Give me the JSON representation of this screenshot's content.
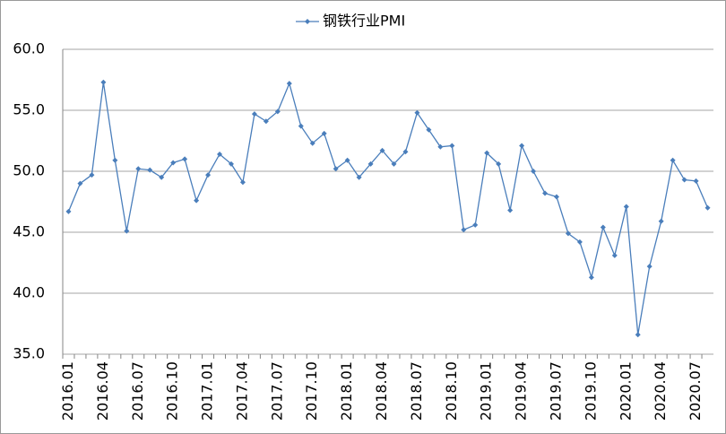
{
  "chart_data": {
    "type": "line",
    "categories": [
      "2016.01",
      null,
      null,
      "2016.04",
      null,
      null,
      "2016.07",
      null,
      null,
      "2016.10",
      null,
      null,
      "2017.01",
      null,
      null,
      "2017.04",
      null,
      null,
      "2017.07",
      null,
      null,
      "2017.10",
      null,
      null,
      "2018.01",
      null,
      null,
      "2018.04",
      null,
      null,
      "2018.07",
      null,
      null,
      "2018.10",
      null,
      null,
      "2019.01",
      null,
      null,
      "2019.04",
      null,
      null,
      "2019.07",
      null,
      null,
      "2019.10",
      null,
      null,
      "2020.01",
      null,
      null,
      "2020.04",
      null,
      null,
      "2020.07",
      null
    ],
    "series": [
      {
        "name": "钢铁行业PMI",
        "color": "#4a7ebb",
        "values": [
          46.7,
          49.0,
          49.7,
          57.3,
          50.9,
          45.1,
          50.2,
          50.1,
          49.5,
          50.7,
          51.0,
          47.6,
          49.7,
          51.4,
          50.6,
          49.1,
          54.7,
          54.1,
          54.9,
          57.2,
          53.7,
          52.3,
          53.1,
          50.2,
          50.9,
          49.5,
          50.6,
          51.7,
          50.6,
          51.6,
          54.8,
          53.4,
          52.0,
          52.1,
          45.2,
          45.6,
          51.5,
          50.6,
          46.8,
          52.1,
          50.0,
          48.2,
          47.9,
          44.9,
          44.2,
          41.3,
          45.4,
          43.1,
          47.1,
          36.6,
          42.2,
          45.9,
          50.9,
          49.3,
          49.2,
          47.0
        ]
      }
    ],
    "ylim": [
      35,
      60
    ],
    "yticks": [
      {
        "value": 35,
        "label": "35.0"
      },
      {
        "value": 40,
        "label": "40.0"
      },
      {
        "value": 45,
        "label": "45.0"
      },
      {
        "value": 50,
        "label": "50.0"
      },
      {
        "value": 55,
        "label": "55.0"
      },
      {
        "value": 60,
        "label": "60.0"
      }
    ],
    "grid": true
  }
}
